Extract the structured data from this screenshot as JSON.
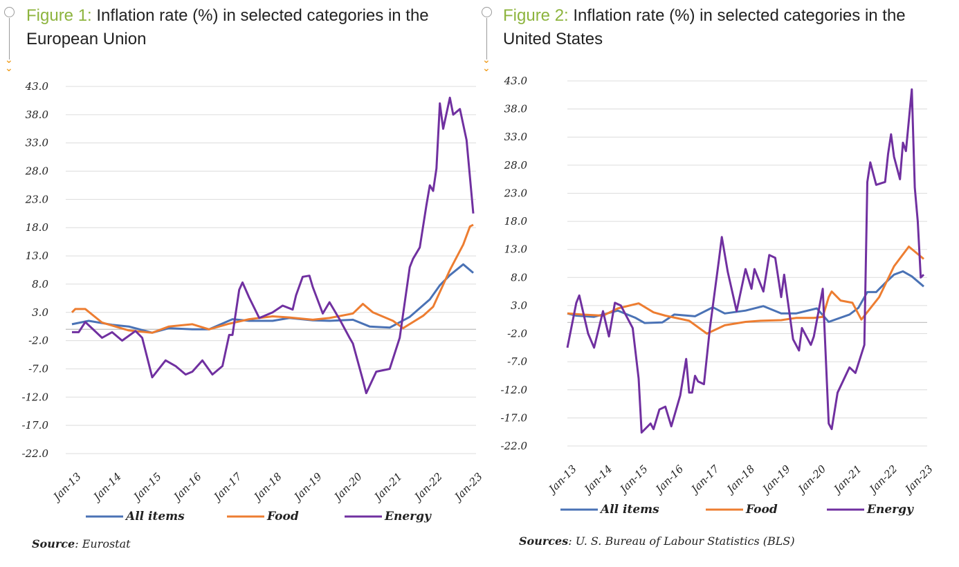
{
  "figures": [
    {
      "label": "Figure 1:",
      "title": "Inflation rate (%) in selected categories in the European Union",
      "source_label": "Source",
      "source_text": ": Eurostat"
    },
    {
      "label": "Figure 2:",
      "title": "Inflation rate (%) in selected categories in the United States",
      "source_label": "Sources",
      "source_text": ": U. S. Bureau of Labour Statistics (BLS)"
    }
  ],
  "colors": {
    "All items": "#4a72b5",
    "Food": "#ed7d31",
    "Energy": "#7030a0",
    "title_accent": "#8db43e",
    "arrow": "#f0a530"
  },
  "chart_data": [
    {
      "type": "line",
      "title": "Inflation rate (%) in selected categories in the European Union",
      "ylim": [
        -22,
        43
      ],
      "yticks": [
        "43.0",
        "38.0",
        "33.0",
        "28.0",
        "23.0",
        "18.0",
        "13.0",
        "8.0",
        "3.0",
        "-2.0",
        "-7.0",
        "-12.0",
        "-17.0",
        "-22.0"
      ],
      "xticks": [
        "Jan-13",
        "Jan-14",
        "Jan-15",
        "Jan-16",
        "Jan-17",
        "Jan-18",
        "Jan-19",
        "Jan-20",
        "Jan-21",
        "Jan-22",
        "Jan-23"
      ],
      "grid": true,
      "legend": "bottom",
      "series": [
        {
          "name": "All items",
          "points": [
            [
              "2013-01",
              0.9
            ],
            [
              "2013-06",
              1.5
            ],
            [
              "2014-01",
              0.8
            ],
            [
              "2014-06",
              0.5
            ],
            [
              "2015-01",
              -0.6
            ],
            [
              "2015-06",
              0.2
            ],
            [
              "2016-01",
              0.0
            ],
            [
              "2016-06",
              0.0
            ],
            [
              "2017-01",
              1.8
            ],
            [
              "2017-06",
              1.5
            ],
            [
              "2018-01",
              1.5
            ],
            [
              "2018-06",
              2.0
            ],
            [
              "2019-01",
              1.6
            ],
            [
              "2019-06",
              1.5
            ],
            [
              "2020-01",
              1.7
            ],
            [
              "2020-06",
              0.5
            ],
            [
              "2020-12",
              0.3
            ],
            [
              "2021-06",
              2.2
            ],
            [
              "2021-12",
              5.3
            ],
            [
              "2022-03",
              7.8
            ],
            [
              "2022-06",
              9.6
            ],
            [
              "2022-10",
              11.5
            ],
            [
              "2023-01",
              10.0
            ]
          ]
        },
        {
          "name": "Food",
          "points": [
            [
              "2013-01",
              3.0
            ],
            [
              "2013-02",
              3.6
            ],
            [
              "2013-05",
              3.6
            ],
            [
              "2013-10",
              1.2
            ],
            [
              "2014-06",
              -0.2
            ],
            [
              "2015-01",
              -0.6
            ],
            [
              "2015-06",
              0.5
            ],
            [
              "2016-01",
              0.9
            ],
            [
              "2016-06",
              0.0
            ],
            [
              "2016-12",
              1.0
            ],
            [
              "2017-06",
              1.8
            ],
            [
              "2018-01",
              2.3
            ],
            [
              "2018-06",
              2.1
            ],
            [
              "2019-01",
              1.7
            ],
            [
              "2019-06",
              2.0
            ],
            [
              "2020-01",
              2.8
            ],
            [
              "2020-04",
              4.5
            ],
            [
              "2020-07",
              3.0
            ],
            [
              "2021-01",
              1.5
            ],
            [
              "2021-04",
              0.2
            ],
            [
              "2021-10",
              2.4
            ],
            [
              "2022-01",
              4.0
            ],
            [
              "2022-06",
              10.5
            ],
            [
              "2022-10",
              15.0
            ],
            [
              "2022-12",
              18.2
            ],
            [
              "2023-01",
              18.5
            ]
          ]
        },
        {
          "name": "Energy",
          "points": [
            [
              "2013-01",
              -0.5
            ],
            [
              "2013-03",
              -0.5
            ],
            [
              "2013-05",
              1.3
            ],
            [
              "2013-10",
              -1.5
            ],
            [
              "2014-01",
              -0.5
            ],
            [
              "2014-04",
              -2.0
            ],
            [
              "2014-08",
              -0.3
            ],
            [
              "2014-10",
              -1.5
            ],
            [
              "2015-01",
              -8.5
            ],
            [
              "2015-05",
              -5.5
            ],
            [
              "2015-08",
              -6.5
            ],
            [
              "2015-11",
              -8.0
            ],
            [
              "2016-01",
              -7.5
            ],
            [
              "2016-04",
              -5.5
            ],
            [
              "2016-07",
              -8.0
            ],
            [
              "2016-10",
              -6.5
            ],
            [
              "2016-12",
              -1.0
            ],
            [
              "2017-01",
              -1.0
            ],
            [
              "2017-03",
              7.0
            ],
            [
              "2017-04",
              8.3
            ],
            [
              "2017-06",
              5.6
            ],
            [
              "2017-09",
              2.0
            ],
            [
              "2018-01",
              3.0
            ],
            [
              "2018-04",
              4.2
            ],
            [
              "2018-07",
              3.5
            ],
            [
              "2018-08",
              6.0
            ],
            [
              "2018-10",
              9.3
            ],
            [
              "2018-12",
              9.5
            ],
            [
              "2019-01",
              7.5
            ],
            [
              "2019-04",
              2.8
            ],
            [
              "2019-06",
              4.8
            ],
            [
              "2019-09",
              1.8
            ],
            [
              "2019-12",
              -1.5
            ],
            [
              "2020-01",
              -2.5
            ],
            [
              "2020-04",
              -9.0
            ],
            [
              "2020-05",
              -11.3
            ],
            [
              "2020-08",
              -7.5
            ],
            [
              "2020-12",
              -7.0
            ],
            [
              "2021-03",
              -1.5
            ],
            [
              "2021-06",
              11.0
            ],
            [
              "2021-07",
              12.5
            ],
            [
              "2021-09",
              14.5
            ],
            [
              "2021-11",
              22.0
            ],
            [
              "2021-12",
              25.5
            ],
            [
              "2022-01",
              24.5
            ],
            [
              "2022-02",
              28.5
            ],
            [
              "2022-03",
              40.0
            ],
            [
              "2022-04",
              35.5
            ],
            [
              "2022-06",
              41.0
            ],
            [
              "2022-07",
              38.0
            ],
            [
              "2022-09",
              39.0
            ],
            [
              "2022-11",
              33.5
            ],
            [
              "2023-01",
              20.5
            ]
          ]
        }
      ]
    },
    {
      "type": "line",
      "title": "Inflation rate (%) in selected categories in the United States",
      "ylim": [
        -22,
        43
      ],
      "yticks": [
        "43.0",
        "38.0",
        "33.0",
        "28.0",
        "23.0",
        "18.0",
        "13.0",
        "8.0",
        "3.0",
        "-2.0",
        "-7.0",
        "-12.0",
        "-17.0",
        "-22.0"
      ],
      "xticks": [
        "Jan-13",
        "Jan-14",
        "Jan-15",
        "Jan-16",
        "Jan-17",
        "Jan-18",
        "Jan-19",
        "Jan-20",
        "Jan-21",
        "Jan-22",
        "Jan-23"
      ],
      "grid": true,
      "legend": "bottom",
      "series": [
        {
          "name": "All items",
          "points": [
            [
              "2013-01",
              1.6
            ],
            [
              "2013-04",
              1.2
            ],
            [
              "2013-10",
              1.0
            ],
            [
              "2014-06",
              2.1
            ],
            [
              "2014-12",
              0.8
            ],
            [
              "2015-03",
              -0.1
            ],
            [
              "2015-09",
              0.0
            ],
            [
              "2016-01",
              1.4
            ],
            [
              "2016-08",
              1.1
            ],
            [
              "2017-02",
              2.7
            ],
            [
              "2017-06",
              1.6
            ],
            [
              "2018-01",
              2.1
            ],
            [
              "2018-07",
              2.9
            ],
            [
              "2019-01",
              1.6
            ],
            [
              "2019-06",
              1.6
            ],
            [
              "2020-01",
              2.5
            ],
            [
              "2020-05",
              0.1
            ],
            [
              "2020-12",
              1.4
            ],
            [
              "2021-03",
              2.6
            ],
            [
              "2021-06",
              5.4
            ],
            [
              "2021-09",
              5.4
            ],
            [
              "2021-12",
              7.0
            ],
            [
              "2022-03",
              8.5
            ],
            [
              "2022-06",
              9.1
            ],
            [
              "2022-09",
              8.2
            ],
            [
              "2023-01",
              6.4
            ]
          ]
        },
        {
          "name": "Food",
          "points": [
            [
              "2013-01",
              1.6
            ],
            [
              "2013-06",
              1.4
            ],
            [
              "2014-01",
              1.2
            ],
            [
              "2014-06",
              2.5
            ],
            [
              "2015-01",
              3.4
            ],
            [
              "2015-06",
              1.8
            ],
            [
              "2015-10",
              1.2
            ],
            [
              "2016-06",
              0.3
            ],
            [
              "2016-12",
              -2.0
            ],
            [
              "2017-06",
              -0.5
            ],
            [
              "2018-01",
              0.1
            ],
            [
              "2018-06",
              0.3
            ],
            [
              "2019-01",
              0.4
            ],
            [
              "2019-06",
              0.8
            ],
            [
              "2019-12",
              0.8
            ],
            [
              "2020-03",
              1.0
            ],
            [
              "2020-05",
              4.5
            ],
            [
              "2020-06",
              5.5
            ],
            [
              "2020-09",
              3.9
            ],
            [
              "2021-01",
              3.5
            ],
            [
              "2021-04",
              0.5
            ],
            [
              "2021-10",
              4.5
            ],
            [
              "2022-03",
              10.0
            ],
            [
              "2022-08",
              13.5
            ],
            [
              "2023-01",
              11.3
            ]
          ]
        },
        {
          "name": "Energy",
          "points": [
            [
              "2013-01",
              -4.5
            ],
            [
              "2013-04",
              3.5
            ],
            [
              "2013-05",
              4.8
            ],
            [
              "2013-08",
              -2.0
            ],
            [
              "2013-10",
              -4.5
            ],
            [
              "2014-01",
              2.0
            ],
            [
              "2014-03",
              -2.5
            ],
            [
              "2014-05",
              3.5
            ],
            [
              "2014-07",
              3.0
            ],
            [
              "2014-11",
              -1.0
            ],
            [
              "2015-01",
              -10.0
            ],
            [
              "2015-02",
              -19.6
            ],
            [
              "2015-05",
              -18.0
            ],
            [
              "2015-06",
              -19.0
            ],
            [
              "2015-08",
              -15.5
            ],
            [
              "2015-10",
              -15.0
            ],
            [
              "2015-12",
              -18.5
            ],
            [
              "2016-03",
              -13.0
            ],
            [
              "2016-05",
              -6.5
            ],
            [
              "2016-06",
              -12.5
            ],
            [
              "2016-07",
              -12.5
            ],
            [
              "2016-08",
              -9.5
            ],
            [
              "2016-09",
              -10.5
            ],
            [
              "2016-11",
              -11.0
            ],
            [
              "2017-01",
              -1.0
            ],
            [
              "2017-04",
              11.0
            ],
            [
              "2017-05",
              15.2
            ],
            [
              "2017-07",
              9.0
            ],
            [
              "2017-10",
              2.0
            ],
            [
              "2018-01",
              9.5
            ],
            [
              "2018-03",
              6.0
            ],
            [
              "2018-04",
              9.5
            ],
            [
              "2018-07",
              5.5
            ],
            [
              "2018-09",
              12.0
            ],
            [
              "2018-11",
              11.5
            ],
            [
              "2019-01",
              4.5
            ],
            [
              "2019-02",
              8.5
            ],
            [
              "2019-05",
              -3.0
            ],
            [
              "2019-07",
              -5.0
            ],
            [
              "2019-08",
              -1.0
            ],
            [
              "2019-11",
              -4.0
            ],
            [
              "2019-12",
              -2.5
            ],
            [
              "2020-03",
              6.0
            ],
            [
              "2020-05",
              -18.0
            ],
            [
              "2020-06",
              -19.0
            ],
            [
              "2020-08",
              -12.5
            ],
            [
              "2020-12",
              -8.0
            ],
            [
              "2021-02",
              -9.0
            ],
            [
              "2021-05",
              -4.0
            ],
            [
              "2021-06",
              25.0
            ],
            [
              "2021-07",
              28.5
            ],
            [
              "2021-09",
              24.5
            ],
            [
              "2021-12",
              25.0
            ],
            [
              "2022-01",
              30.0
            ],
            [
              "2022-02",
              33.5
            ],
            [
              "2022-03",
              29.5
            ],
            [
              "2022-05",
              25.5
            ],
            [
              "2022-06",
              32.0
            ],
            [
              "2022-07",
              30.5
            ],
            [
              "2022-09",
              41.5
            ],
            [
              "2022-10",
              24.0
            ],
            [
              "2022-11",
              18.0
            ],
            [
              "2022-12",
              8.0
            ],
            [
              "2023-01",
              8.5
            ]
          ]
        }
      ]
    }
  ]
}
